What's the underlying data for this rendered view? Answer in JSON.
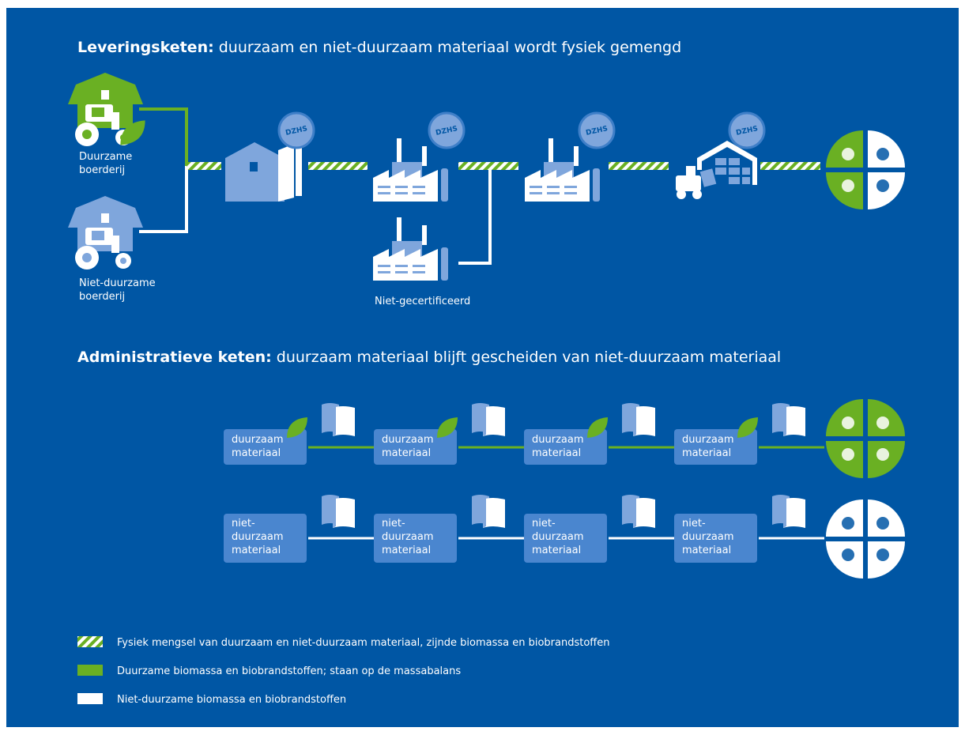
{
  "supply_chain": {
    "title_bold": "Leveringsketen:",
    "title_rest": "duurzaam en niet-duurzaam materiaal wordt fysiek gemengd",
    "sustainable_farm": [
      "Duurzame",
      "boerderij"
    ],
    "unsustainable_farm": [
      "Niet-duurzame",
      "boerderij"
    ],
    "badge": "DZHS",
    "uncertified": "Niet-gecertificeerd"
  },
  "admin_chain": {
    "title_bold": "Administratieve keten:",
    "title_rest": "duurzaam materiaal blijft gescheiden van niet-duurzaam materiaal",
    "sustainable_box": [
      "duurzaam",
      "materiaal"
    ],
    "unsustainable_box": [
      "niet-",
      "duurzaam",
      "materiaal"
    ]
  },
  "legend": [
    "Fysiek mengsel van duurzaam en niet-duurzaam materiaal, zijnde biomassa en biobrandstoffen",
    "Duurzame biomassa en biobrandstoffen; staan op de massabalans",
    "Niet-duurzame biomassa en biobrandstoffen"
  ]
}
